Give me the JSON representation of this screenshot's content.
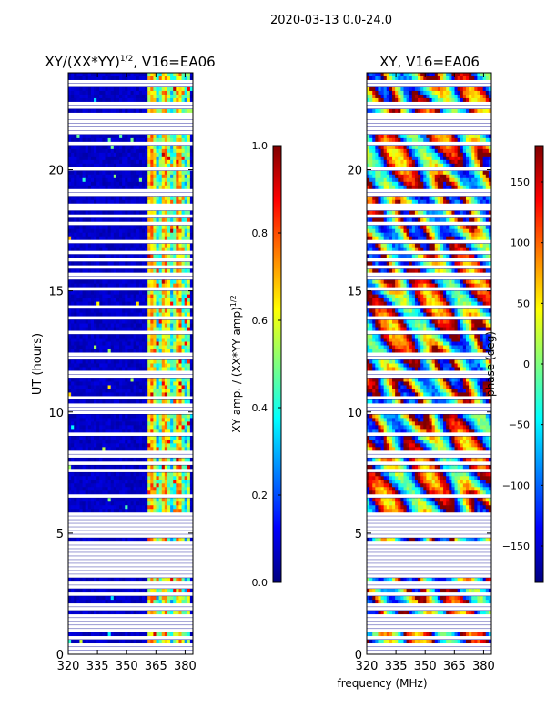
{
  "suptitle": "2020-03-13 0.0-24.0",
  "colors": {
    "background_band": "#00008f",
    "blank_row": "#ffffff",
    "jet": [
      "#00007f",
      "#0000ff",
      "#007fff",
      "#00ffff",
      "#7fff7f",
      "#ffff00",
      "#ff7f00",
      "#ff0000",
      "#7f0000"
    ]
  },
  "chart_data": [
    {
      "type": "heatmap",
      "title": "XY/(XX*YY)",
      "title_sup": "1/2",
      "title_suffix": ", V16=EA06",
      "xlabel": "",
      "ylabel": "UT (hours)",
      "xlim": [
        320,
        384
      ],
      "ylim": [
        0,
        24
      ],
      "xticks": [
        320,
        335,
        350,
        365,
        380
      ],
      "yticks": [
        0,
        5,
        10,
        15,
        20
      ],
      "zlim": [
        0.0,
        1.0
      ],
      "bright_band_MHz": [
        361,
        382
      ],
      "colorbar": {
        "label_main": "XY amp. / (XX*YY amp)",
        "label_sup": "1/2",
        "ticks": [
          "0.0",
          "0.2",
          "0.4",
          "0.6",
          "0.8",
          "1.0"
        ],
        "range": [
          0.0,
          1.0
        ]
      }
    },
    {
      "type": "heatmap",
      "title": "XY, V16=EA06",
      "xlabel": "frequency (MHz)",
      "ylabel": "",
      "xlim": [
        320,
        384
      ],
      "ylim": [
        0,
        24
      ],
      "xticks": [
        320,
        335,
        350,
        365,
        380
      ],
      "yticks": [
        0,
        5,
        10,
        15,
        20
      ],
      "zlim": [
        -180,
        180
      ],
      "colorbar": {
        "label": "phase (deg)",
        "ticks": [
          "−150",
          "−100",
          "−50",
          "0",
          "50",
          "100",
          "150"
        ],
        "range": [
          -180,
          180
        ]
      }
    }
  ],
  "blank_rows_hours": [
    0.15,
    0.42,
    0.68,
    0.95,
    1.05,
    1.15,
    1.25,
    1.35,
    1.5,
    1.95,
    2.45,
    2.85,
    3.2,
    3.35,
    3.5,
    3.62,
    3.9,
    4.2,
    4.5,
    4.85,
    5.1,
    5.35,
    5.55,
    5.65,
    5.75,
    6.5,
    7.55,
    7.9,
    8.2,
    8.35,
    9.1,
    10.05,
    10.2,
    10.55,
    11.55,
    12.3,
    13.3,
    13.9,
    14.3,
    15.05,
    15.5,
    15.7,
    15.95,
    16.3,
    16.6,
    17.05,
    17.75,
    18.05,
    18.4,
    18.55,
    18.95,
    19.05,
    19.15,
    20.05,
    21.1,
    21.6,
    21.85,
    22.05,
    22.25,
    22.6,
    22.7,
    23.55
  ]
}
